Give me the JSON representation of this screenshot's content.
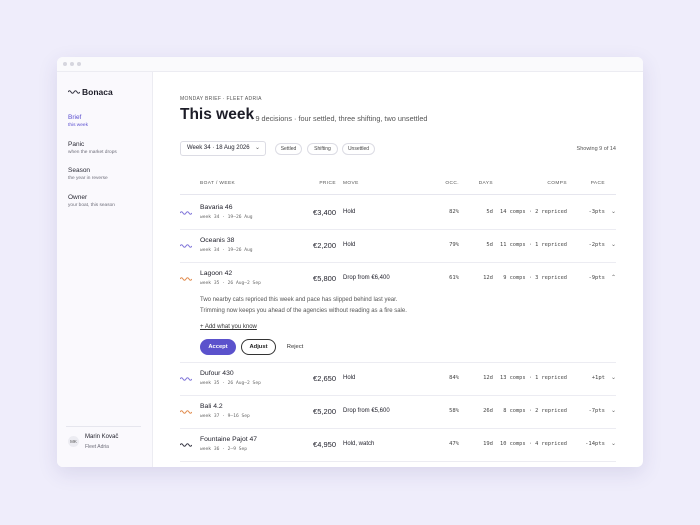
{
  "sidebar": {
    "brand": "Bonaca",
    "nav": [
      {
        "label": "Brief",
        "sub": "this week",
        "active": true
      },
      {
        "label": "Panic",
        "sub": "when the market drops",
        "active": false
      },
      {
        "label": "Season",
        "sub": "the year in reverse",
        "active": false
      },
      {
        "label": "Owner",
        "sub": "your boat, this season",
        "active": false
      }
    ],
    "user": {
      "initials": "MK",
      "name": "Marin Kovač",
      "org": "Fleet Adria"
    }
  },
  "header": {
    "eyebrow": "MONDAY BRIEF · FLEET ADRIA",
    "title": "This week",
    "summary": "· 9 decisions · four settled, three shifting, two unsettled"
  },
  "filters": {
    "week": "Week 34 · 18 Aug 2026",
    "chips": [
      "Settled",
      "Shifting",
      "Unsettled"
    ],
    "count": "Showing 9 of 14"
  },
  "table": {
    "columns": {
      "boat": "BOAT / WEEK",
      "price": "PRICE",
      "move": "MOVE",
      "occ": "OCC.",
      "days": "DAYS",
      "comps": "COMPS",
      "pace": "PACE"
    },
    "rows": [
      {
        "boat": "Bavaria 46",
        "week": "week 34 · 19–26 Aug",
        "price": "€3,400",
        "move": "Hold",
        "occ": "82%",
        "days": "5d",
        "comps": "14 comps · 2 repriced",
        "pace": "-3pts",
        "icon_color": "#7d72d8"
      },
      {
        "boat": "Oceanis 38",
        "week": "week 34 · 19–26 Aug",
        "price": "€2,200",
        "move": "Hold",
        "occ": "79%",
        "days": "5d",
        "comps": "11 comps · 1 repriced",
        "pace": "-2pts",
        "icon_color": "#7d72d8"
      },
      {
        "boat": "Lagoon 42",
        "week": "week 35 · 26 Aug–2 Sep",
        "price": "€5,800",
        "move": "Drop from €6,400",
        "occ": "61%",
        "days": "12d",
        "comps": "9 comps · 3 repriced",
        "pace": "-9pts",
        "icon_color": "#e0894a",
        "detail": {
          "note": [
            "Two nearby cats repriced this week and pace has slipped behind last year.",
            "Trimming now keeps you ahead of the agencies without reading as a fire sale."
          ],
          "add": "+ Add what you know",
          "actions": [
            "Accept",
            "Adjust",
            "Reject"
          ]
        }
      },
      {
        "boat": "Dufour 430",
        "week": "week 35 · 26 Aug–2 Sep",
        "price": "€2,650",
        "move": "Hold",
        "occ": "84%",
        "days": "12d",
        "comps": "13 comps · 1 repriced",
        "pace": "+1pt",
        "icon_color": "#7d72d8"
      },
      {
        "boat": "Bali 4.2",
        "week": "week 37 · 9–16 Sep",
        "price": "€5,200",
        "move": "Drop from €5,600",
        "occ": "58%",
        "days": "26d",
        "comps": "8 comps · 2 repriced",
        "pace": "-7pts",
        "icon_color": "#e0894a"
      },
      {
        "boat": "Fountaine Pajot 47",
        "week": "week 36 · 2–9 Sep",
        "price": "€4,950",
        "move": "Hold, watch",
        "occ": "47%",
        "days": "19d",
        "comps": "10 comps · 4 repriced",
        "pace": "-14pts",
        "icon_color": "#333340"
      }
    ]
  }
}
